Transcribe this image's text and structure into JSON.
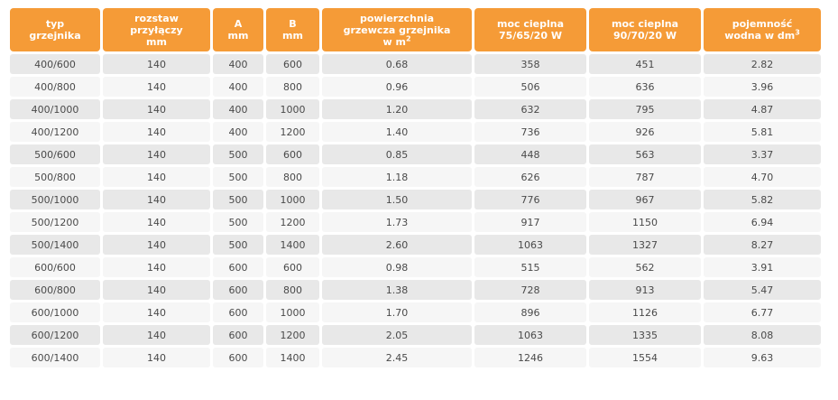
{
  "columns": [
    {
      "line1": "typ",
      "line2": "grzejnika",
      "line3": "",
      "sup": ""
    },
    {
      "line1": "rozstaw",
      "line2": "przyłączy",
      "line3": "mm",
      "sup": ""
    },
    {
      "line1": "A",
      "line2": "mm",
      "line3": "",
      "sup": ""
    },
    {
      "line1": "B",
      "line2": "mm",
      "line3": "",
      "sup": ""
    },
    {
      "line1": "powierzchnia",
      "line2": "grzewcza grzejnika",
      "line3": "w m",
      "sup": "2"
    },
    {
      "line1": "moc cieplna",
      "line2": "75/65/20 W",
      "line3": "",
      "sup": ""
    },
    {
      "line1": "moc cieplna",
      "line2": "90/70/20 W",
      "line3": "",
      "sup": ""
    },
    {
      "line1": "pojemność",
      "line2": "wodna w dm",
      "line3": "",
      "sup": "3"
    }
  ],
  "rows": [
    [
      "400/600",
      "140",
      "400",
      "600",
      "0.68",
      "358",
      "451",
      "2.82"
    ],
    [
      "400/800",
      "140",
      "400",
      "800",
      "0.96",
      "506",
      "636",
      "3.96"
    ],
    [
      "400/1000",
      "140",
      "400",
      "1000",
      "1.20",
      "632",
      "795",
      "4.87"
    ],
    [
      "400/1200",
      "140",
      "400",
      "1200",
      "1.40",
      "736",
      "926",
      "5.81"
    ],
    [
      "500/600",
      "140",
      "500",
      "600",
      "0.85",
      "448",
      "563",
      "3.37"
    ],
    [
      "500/800",
      "140",
      "500",
      "800",
      "1.18",
      "626",
      "787",
      "4.70"
    ],
    [
      "500/1000",
      "140",
      "500",
      "1000",
      "1.50",
      "776",
      "967",
      "5.82"
    ],
    [
      "500/1200",
      "140",
      "500",
      "1200",
      "1.73",
      "917",
      "1150",
      "6.94"
    ],
    [
      "500/1400",
      "140",
      "500",
      "1400",
      "2.60",
      "1063",
      "1327",
      "8.27"
    ],
    [
      "600/600",
      "140",
      "600",
      "600",
      "0.98",
      "515",
      "562",
      "3.91"
    ],
    [
      "600/800",
      "140",
      "600",
      "800",
      "1.38",
      "728",
      "913",
      "5.47"
    ],
    [
      "600/1000",
      "140",
      "600",
      "1000",
      "1.70",
      "896",
      "1126",
      "6.77"
    ],
    [
      "600/1200",
      "140",
      "600",
      "1200",
      "2.05",
      "1063",
      "1335",
      "8.08"
    ],
    [
      "600/1400",
      "140",
      "600",
      "1400",
      "2.45",
      "1246",
      "1554",
      "9.63"
    ]
  ],
  "colors": {
    "header_bg": "#f59b37",
    "row_dark": "#e8e8e8",
    "row_light": "#f6f6f6"
  }
}
